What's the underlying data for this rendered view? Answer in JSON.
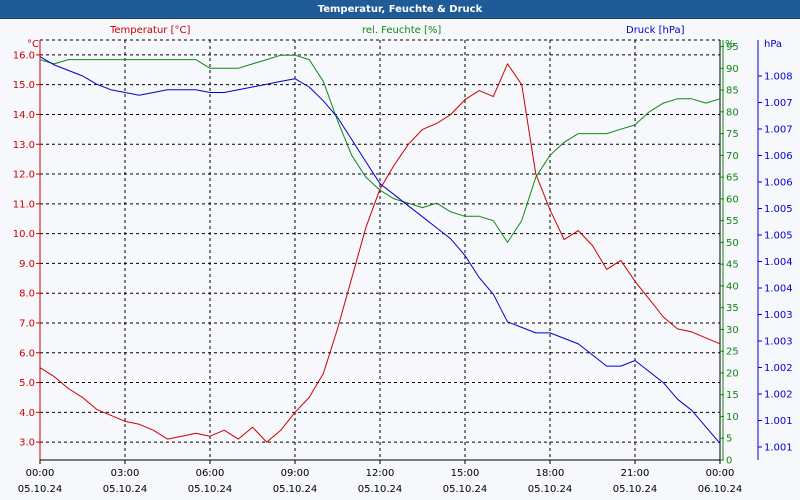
{
  "window": {
    "title": "Temperatur, Feuchte & Druck"
  },
  "colors": {
    "temperature": "#cc0000",
    "humidity": "#118811",
    "pressure": "#0000cc",
    "grid": "#000000"
  },
  "chart_data": {
    "type": "line",
    "title": "Temperatur, Feuchte & Druck",
    "grid": true,
    "legend": "top",
    "x": {
      "label": "",
      "range": [
        0,
        24
      ],
      "ticks": [
        {
          "time": "00:00",
          "date": "05.10.24"
        },
        {
          "time": "03:00",
          "date": "05.10.24"
        },
        {
          "time": "06:00",
          "date": "05.10.24"
        },
        {
          "time": "09:00",
          "date": "05.10.24"
        },
        {
          "time": "12:00",
          "date": "05.10.24"
        },
        {
          "time": "15:00",
          "date": "05.10.24"
        },
        {
          "time": "18:00",
          "date": "05.10.24"
        },
        {
          "time": "21:00",
          "date": "05.10.24"
        },
        {
          "time": "00:00",
          "date": "06.10.24"
        }
      ]
    },
    "axes": {
      "temperature": {
        "label": "Temperatur [°C]",
        "unit": "°C",
        "range": [
          2.4,
          16.5
        ],
        "ticks": [
          "3.0",
          "4.0",
          "5.0",
          "6.0",
          "7.0",
          "8.0",
          "9.0",
          "10.0",
          "11.0",
          "12.0",
          "13.0",
          "14.0",
          "15.0",
          "16.0"
        ]
      },
      "humidity": {
        "label": "rel. Feuchte [%]",
        "unit": "%",
        "range": [
          0,
          96.5
        ],
        "ticks": [
          "0",
          "5",
          "10",
          "15",
          "20",
          "25",
          "30",
          "35",
          "40",
          "45",
          "50",
          "55",
          "60",
          "65",
          "70",
          "75",
          "80",
          "85",
          "90",
          "95"
        ]
      },
      "pressure": {
        "label": "Druck [hPa]",
        "unit": "hPa",
        "range": [
          1000.8,
          1008.4
        ],
        "ticks": [
          "1.001",
          "1.001",
          "1.002",
          "1.002",
          "1.003",
          "1.003",
          "1.004",
          "1.004",
          "1.005",
          "1.005",
          "1.006",
          "1.006",
          "1.007",
          "1.007",
          "1.008"
        ]
      }
    },
    "series": [
      {
        "name": "Temperatur [°C]",
        "axis": "temperature",
        "x": [
          0,
          0.5,
          1,
          1.5,
          2,
          2.5,
          3,
          3.5,
          4,
          4.5,
          5,
          5.5,
          6,
          6.5,
          7,
          7.5,
          8,
          8.5,
          9,
          9.5,
          10,
          10.5,
          11,
          11.5,
          12,
          12.5,
          13,
          13.5,
          14,
          14.5,
          15,
          15.5,
          16,
          16.5,
          17,
          17.5,
          18,
          18.5,
          19,
          19.5,
          20,
          20.5,
          21,
          21.5,
          22,
          22.5,
          23,
          23.5,
          24
        ],
        "values": [
          5.5,
          5.2,
          4.8,
          4.5,
          4.1,
          3.9,
          3.7,
          3.6,
          3.4,
          3.1,
          3.2,
          3.3,
          3.2,
          3.4,
          3.1,
          3.5,
          3.0,
          3.4,
          4.0,
          4.5,
          5.3,
          6.8,
          8.5,
          10.2,
          11.5,
          12.3,
          13.0,
          13.5,
          13.7,
          14.0,
          14.5,
          14.8,
          14.6,
          15.7,
          15.0,
          12.0,
          10.8,
          9.8,
          10.1,
          9.6,
          8.8,
          9.1,
          8.4,
          7.8,
          7.2,
          6.8,
          6.7,
          6.5,
          6.3
        ]
      },
      {
        "name": "rel. Feuchte [%]",
        "axis": "humidity",
        "x": [
          0,
          0.5,
          1,
          1.5,
          2,
          2.5,
          3,
          3.5,
          4,
          4.5,
          5,
          5.5,
          6,
          6.5,
          7,
          7.5,
          8,
          8.5,
          9,
          9.5,
          10,
          10.5,
          11,
          11.5,
          12,
          12.5,
          13,
          13.5,
          14,
          14.5,
          15,
          15.5,
          16,
          16.5,
          17,
          17.5,
          18,
          18.5,
          19,
          19.5,
          20,
          20.5,
          21,
          21.5,
          22,
          22.5,
          23,
          23.5,
          24
        ],
        "values": [
          92,
          91,
          92,
          92,
          92,
          92,
          92,
          92,
          92,
          92,
          92,
          92,
          90,
          90,
          90,
          91,
          92,
          93,
          93,
          92,
          87,
          78,
          70,
          65,
          62,
          60,
          59,
          58,
          59,
          57,
          56,
          56,
          55,
          50,
          55,
          65,
          70,
          73,
          75,
          75,
          75,
          76,
          77,
          80,
          82,
          83,
          83,
          82,
          83
        ]
      },
      {
        "name": "Druck [hPa]",
        "axis": "pressure",
        "x": [
          0,
          0.5,
          1,
          1.5,
          2,
          2.5,
          3,
          3.5,
          4,
          4.5,
          5,
          5.5,
          6,
          6.5,
          7,
          7.5,
          8,
          8.5,
          9,
          9.5,
          10,
          10.5,
          11,
          11.5,
          12,
          12.5,
          13,
          13.5,
          14,
          14.5,
          15,
          15.5,
          16,
          16.5,
          17,
          17.5,
          18,
          18.5,
          19,
          19.5,
          20,
          20.5,
          21,
          21.5,
          22,
          22.5,
          23,
          23.5,
          24
        ],
        "values": [
          1008.1,
          1007.95,
          1007.85,
          1007.75,
          1007.6,
          1007.5,
          1007.45,
          1007.4,
          1007.45,
          1007.5,
          1007.5,
          1007.5,
          1007.45,
          1007.45,
          1007.5,
          1007.55,
          1007.6,
          1007.65,
          1007.7,
          1007.55,
          1007.3,
          1007.0,
          1006.6,
          1006.2,
          1005.8,
          1005.6,
          1005.4,
          1005.2,
          1005.0,
          1004.8,
          1004.5,
          1004.1,
          1003.8,
          1003.3,
          1003.2,
          1003.1,
          1003.1,
          1003.0,
          1002.9,
          1002.7,
          1002.5,
          1002.5,
          1002.6,
          1002.4,
          1002.2,
          1001.9,
          1001.7,
          1001.4,
          1001.1
        ]
      }
    ]
  }
}
